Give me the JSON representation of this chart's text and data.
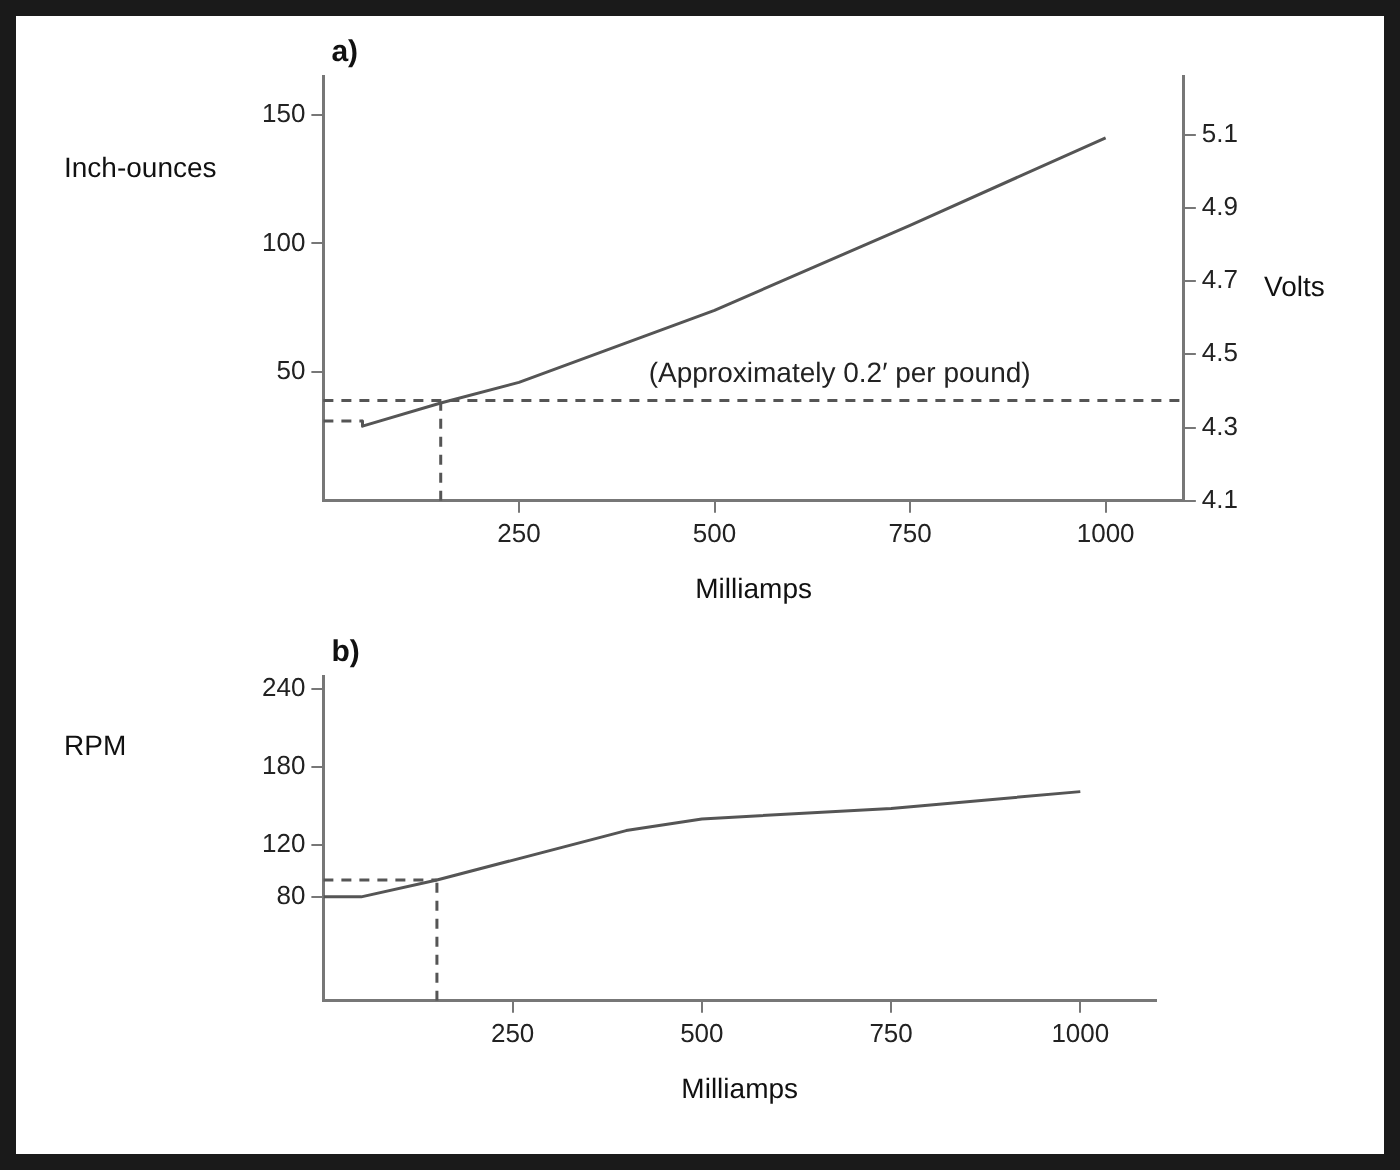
{
  "chart_data": [
    {
      "type": "line",
      "title": "a)",
      "xlabel": "Milliamps",
      "ylabel": "Inch-ounces",
      "y2label": "Volts",
      "xlim": [
        0,
        1100
      ],
      "xticks": [
        250,
        500,
        750,
        1000
      ],
      "ylim": [
        0,
        165
      ],
      "yticks": [
        50,
        100,
        150
      ],
      "y2lim": [
        4.1,
        5.26
      ],
      "y2ticks": [
        4.1,
        4.3,
        4.5,
        4.7,
        4.9,
        5.1
      ],
      "grid": false,
      "legend": false,
      "marker": "none",
      "series": [
        {
          "color": "#555555",
          "x": [
            50,
            50,
            150,
            250,
            500,
            750,
            1000
          ],
          "values": [
            31,
            29,
            38,
            46,
            74,
            107,
            141
          ]
        },
        {
          "color": "#555555",
          "line_style": "dashed",
          "x": [
            0,
            50
          ],
          "values": [
            31,
            31
          ]
        },
        {
          "color": "#555555",
          "line_style": "dashed",
          "x": [
            150,
            150
          ],
          "values": [
            0,
            38
          ]
        }
      ],
      "ref_lines": [
        {
          "axis": "y",
          "value": 39,
          "label": "(Approximately 0.2′ per pound)",
          "color": "#555555",
          "line_style": "dashed"
        }
      ]
    },
    {
      "type": "line",
      "title": "b)",
      "xlabel": "Milliamps",
      "ylabel": "RPM",
      "xlim": [
        0,
        1100
      ],
      "xticks": [
        250,
        500,
        750,
        1000
      ],
      "ylim": [
        0,
        250
      ],
      "yticks": [
        80,
        120,
        180,
        240
      ],
      "grid": false,
      "legend": false,
      "marker": "none",
      "series": [
        {
          "color": "#555555",
          "x": [
            0,
            50,
            150,
            400,
            500,
            750,
            1000
          ],
          "values": [
            80,
            80,
            93,
            131,
            140,
            148,
            161
          ]
        },
        {
          "color": "#555555",
          "line_style": "dashed",
          "x": [
            0,
            150
          ],
          "values": [
            93,
            93
          ]
        },
        {
          "color": "#555555",
          "line_style": "dashed",
          "x": [
            150,
            150
          ],
          "values": [
            0,
            93
          ]
        }
      ]
    }
  ]
}
